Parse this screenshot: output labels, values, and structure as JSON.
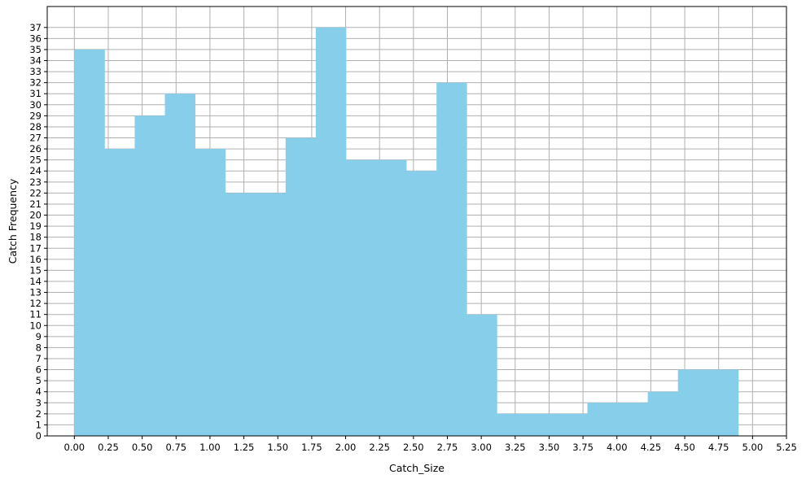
{
  "chart_data": {
    "type": "bar",
    "title": "",
    "xlabel": "Catch_Size",
    "ylabel": "Catch Frequency",
    "bin_edges": [
      0.0,
      0.2225,
      0.445,
      0.6675,
      0.89,
      1.1125,
      1.335,
      1.5575,
      1.78,
      2.0025,
      2.225,
      2.4475,
      2.67,
      2.8925,
      3.115,
      3.3375,
      3.56,
      3.7825,
      4.005,
      4.2275,
      4.45,
      4.6725,
      4.895
    ],
    "values": [
      35,
      26,
      29,
      31,
      26,
      22,
      22,
      27,
      37,
      25,
      25,
      24,
      32,
      11,
      2,
      2,
      2,
      3,
      3,
      4,
      6,
      6
    ],
    "xlim": [
      -0.2,
      5.25
    ],
    "ylim": [
      0,
      38.9
    ],
    "xticks": [
      0.0,
      0.25,
      0.5,
      0.75,
      1.0,
      1.25,
      1.5,
      1.75,
      2.0,
      2.25,
      2.5,
      2.75,
      3.0,
      3.25,
      3.5,
      3.75,
      4.0,
      4.25,
      4.5,
      4.75,
      5.0,
      5.25
    ],
    "xtick_labels": [
      "0.00",
      "0.25",
      "0.50",
      "0.75",
      "1.00",
      "1.25",
      "1.50",
      "1.75",
      "2.00",
      "2.25",
      "2.50",
      "2.75",
      "3.00",
      "3.25",
      "3.50",
      "3.75",
      "4.00",
      "4.25",
      "4.50",
      "4.75",
      "5.00",
      "5.25"
    ],
    "yticks": [
      0,
      1,
      2,
      3,
      4,
      5,
      6,
      7,
      8,
      9,
      10,
      11,
      12,
      13,
      14,
      15,
      16,
      17,
      18,
      19,
      20,
      21,
      22,
      23,
      24,
      25,
      26,
      27,
      28,
      29,
      30,
      31,
      32,
      33,
      34,
      35,
      36,
      37
    ],
    "grid": true,
    "colors": {
      "bar": "#87ceeb",
      "grid": "#b0b0b0",
      "axis": "#000000"
    }
  }
}
